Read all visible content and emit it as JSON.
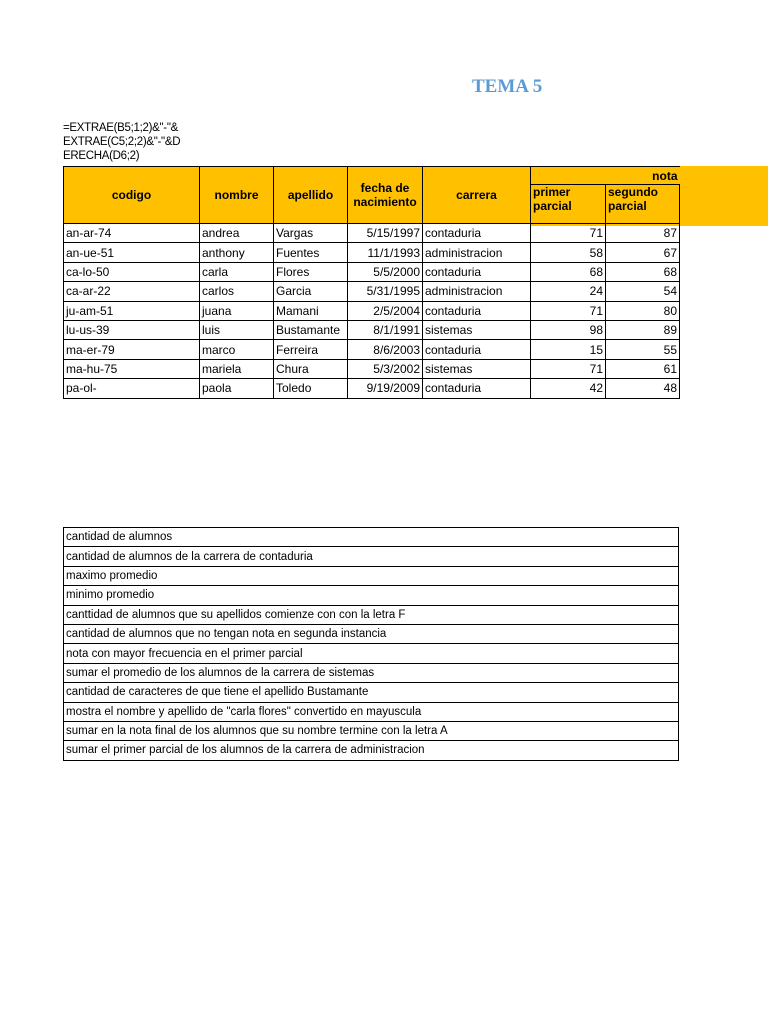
{
  "title": "TEMA 5",
  "formula_lines": [
    "=EXTRAE(B5;1;2)&\"-\"&",
    "EXTRAE(C5;2;2)&\"-\"&D",
    "ERECHA(D6;2)"
  ],
  "colors": {
    "header_fill": "#ffc000",
    "title": "#5b9bd5"
  },
  "table": {
    "headers": {
      "codigo": "codigo",
      "nombre": "nombre",
      "apellido": "apellido",
      "fecha": "fecha de nacimiento",
      "carrera": "carrera",
      "nota": "nota",
      "primer": "primer parcial",
      "segundo": "segundo parcial"
    },
    "rows": [
      [
        "an-ar-74",
        "andrea",
        "Vargas",
        "5/15/1997",
        "contaduria",
        "71",
        "87"
      ],
      [
        "an-ue-51",
        "anthony",
        "Fuentes",
        "11/1/1993",
        "administracion",
        "58",
        "67"
      ],
      [
        "ca-lo-50",
        "carla",
        "Flores",
        "5/5/2000",
        "contaduria",
        "68",
        "68"
      ],
      [
        "ca-ar-22",
        "carlos",
        "Garcia",
        "5/31/1995",
        "administracion",
        "24",
        "54"
      ],
      [
        "ju-am-51",
        "juana",
        "Mamani",
        "2/5/2004",
        "contaduria",
        "71",
        "80"
      ],
      [
        "lu-us-39",
        "luis",
        "Bustamante",
        "8/1/1991",
        "sistemas",
        "98",
        "89"
      ],
      [
        "ma-er-79",
        "marco",
        "Ferreira",
        "8/6/2003",
        "contaduria",
        "15",
        "55"
      ],
      [
        "ma-hu-75",
        "mariela",
        "Chura",
        "5/3/2002",
        "sistemas",
        "71",
        "61"
      ],
      [
        "pa-ol-",
        "paola",
        "Toledo",
        "9/19/2009",
        "contaduria",
        "42",
        "48"
      ]
    ]
  },
  "questions": [
    "cantidad de alumnos",
    "cantidad de alumnos de la carrera de contaduria",
    "maximo promedio",
    "minimo promedio",
    "canttidad de alumnos que su apellidos comienze con con la letra F",
    "cantidad de alumnos que no tengan nota en segunda instancia",
    "nota con mayor frecuencia en el primer parcial",
    "sumar el promedio de los alumnos de la carrera de sistemas",
    "cantidad de caracteres de que tiene el apellido Bustamante",
    "mostra el nombre y apellido de \"carla flores\" convertido en mayuscula",
    "sumar en la nota final de los alumnos que su nombre termine con la letra A",
    "sumar el primer parcial de los alumnos de la carrera de administracion"
  ]
}
